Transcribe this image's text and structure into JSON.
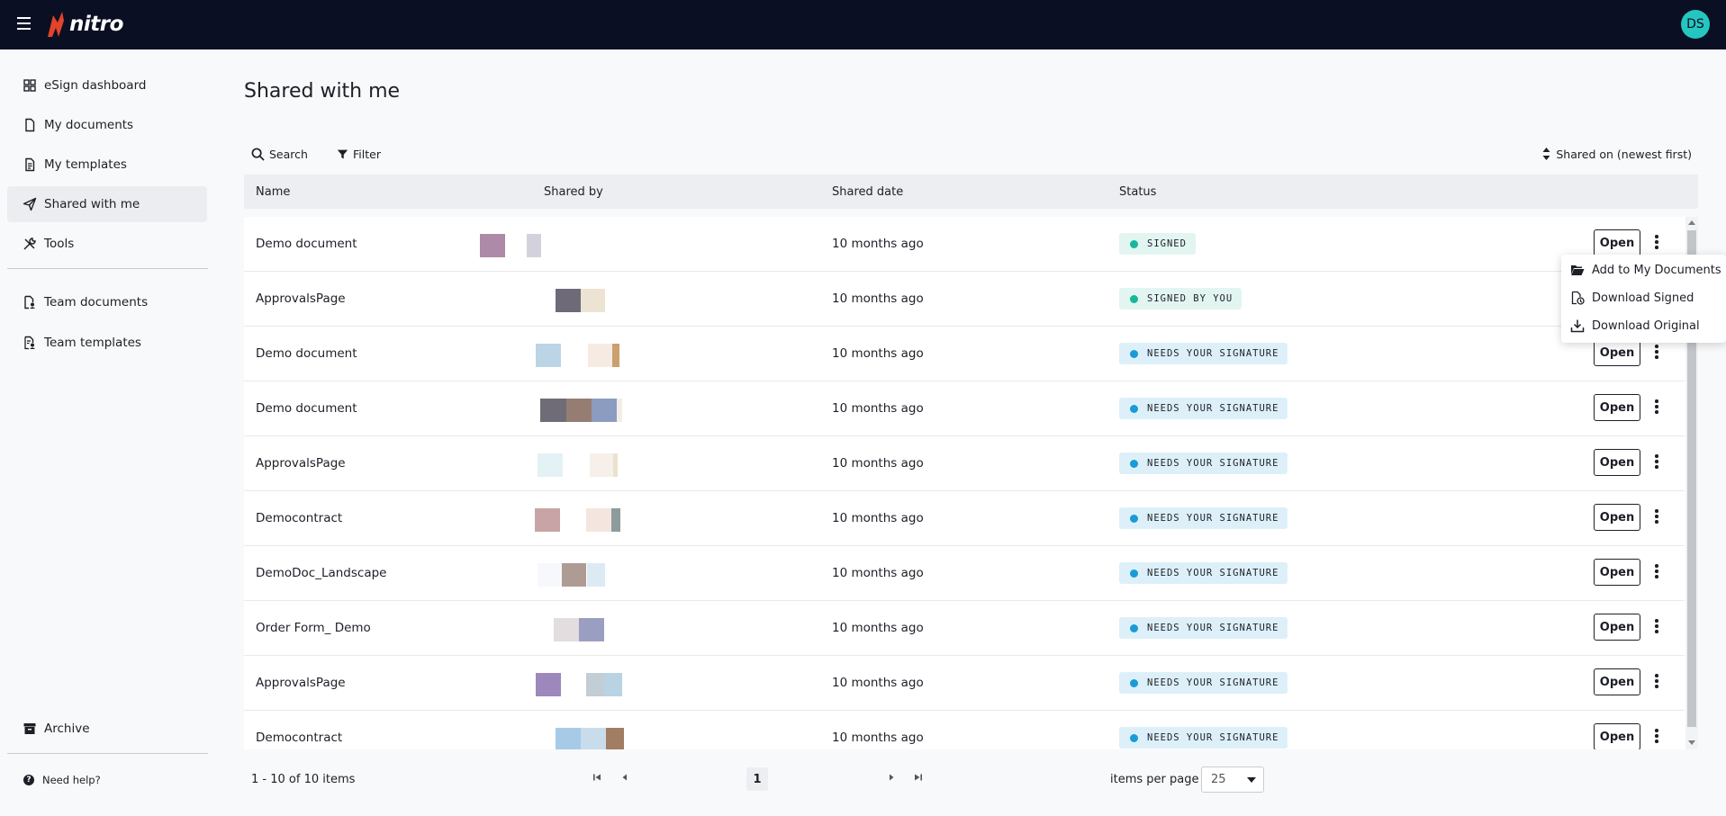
{
  "app": {
    "brand": "nitro",
    "user_initials": "DS"
  },
  "sidebar": {
    "items": [
      {
        "label": "eSign dashboard",
        "icon": "dashboard-icon"
      },
      {
        "label": "My documents",
        "icon": "document-icon"
      },
      {
        "label": "My templates",
        "icon": "template-icon"
      },
      {
        "label": "Shared with me",
        "icon": "send-icon",
        "active": true
      },
      {
        "label": "Tools",
        "icon": "tools-icon"
      },
      {
        "label": "Team documents",
        "icon": "team-document-icon"
      },
      {
        "label": "Team templates",
        "icon": "team-template-icon"
      },
      {
        "label": "Archive",
        "icon": "archive-icon"
      }
    ],
    "help": "Need help?"
  },
  "page": {
    "title": "Shared with me"
  },
  "toolbar": {
    "search": "Search",
    "filter": "Filter",
    "sort": "Shared on (newest first)"
  },
  "table": {
    "headers": {
      "name": "Name",
      "shared_by": "Shared by",
      "shared_date": "Shared date",
      "status": "Status"
    },
    "open_label": "Open",
    "rows": [
      {
        "name": "Demo document",
        "date": "10 months ago",
        "status": "SIGNED",
        "status_type": "signed"
      },
      {
        "name": "ApprovalsPage",
        "date": "10 months ago",
        "status": "SIGNED BY YOU",
        "status_type": "signed"
      },
      {
        "name": "Demo document",
        "date": "10 months ago",
        "status": "NEEDS YOUR SIGNATURE",
        "status_type": "needs"
      },
      {
        "name": "Demo document",
        "date": "10 months ago",
        "status": "NEEDS YOUR SIGNATURE",
        "status_type": "needs"
      },
      {
        "name": "ApprovalsPage",
        "date": "10 months ago",
        "status": "NEEDS YOUR SIGNATURE",
        "status_type": "needs"
      },
      {
        "name": "Democontract",
        "date": "10 months ago",
        "status": "NEEDS YOUR SIGNATURE",
        "status_type": "needs"
      },
      {
        "name": "DemoDoc_Landscape",
        "date": "10 months ago",
        "status": "NEEDS YOUR SIGNATURE",
        "status_type": "needs"
      },
      {
        "name": "Order Form_ Demo",
        "date": "10 months ago",
        "status": "NEEDS YOUR SIGNATURE",
        "status_type": "needs"
      },
      {
        "name": "ApprovalsPage",
        "date": "10 months ago",
        "status": "NEEDS YOUR SIGNATURE",
        "status_type": "needs"
      },
      {
        "name": "Democontract",
        "date": "10 months ago",
        "status": "NEEDS YOUR SIGNATURE",
        "status_type": "needs"
      }
    ]
  },
  "row_menu": {
    "items": [
      {
        "label": "Add to My Documents",
        "icon": "folder-open-icon"
      },
      {
        "label": "Download Signed",
        "icon": "signed-document-icon"
      },
      {
        "label": "Download Original",
        "icon": "download-icon"
      }
    ]
  },
  "pagination": {
    "info": "1 - 10 of 10 items",
    "current_page": "1",
    "items_per_page_label": "items per page",
    "items_per_page": "25"
  },
  "colors": {
    "topbar": "#0b0f23",
    "brand_accent": "#e2432a",
    "avatar": "#26c6c0",
    "signed_bg": "#e2f5f1",
    "signed_dot": "#16b79a",
    "needs_bg": "#ddf0f9",
    "needs_dot": "#1a9ad6"
  }
}
